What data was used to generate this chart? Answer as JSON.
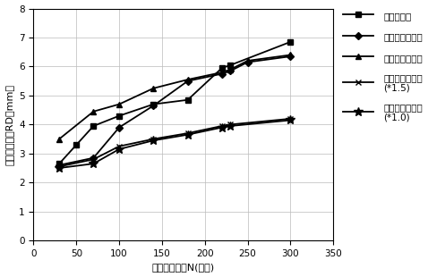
{
  "x": [
    30,
    50,
    70,
    100,
    140,
    180,
    220,
    230,
    250,
    300
  ],
  "series": [
    {
      "label": "车辙实测值",
      "y": [
        2.65,
        3.3,
        3.95,
        4.3,
        4.7,
        4.85,
        5.95,
        6.05,
        null,
        6.85
      ],
      "marker": "s",
      "markersize": 5,
      "color": "#000000",
      "linestyle": "-"
    },
    {
      "label": "推演－典型气温",
      "y": [
        2.6,
        null,
        2.85,
        3.9,
        4.65,
        5.5,
        5.75,
        5.85,
        6.15,
        6.35
      ],
      "marker": "D",
      "markersize": 4,
      "color": "#000000",
      "linestyle": "-"
    },
    {
      "label": "推演－最高气温",
      "y": [
        3.5,
        null,
        4.45,
        4.7,
        5.25,
        5.55,
        5.8,
        5.9,
        6.2,
        6.4
      ],
      "marker": "^",
      "markersize": 5,
      "color": "#000000",
      "linestyle": "-"
    },
    {
      "label": "推演－典型气温\n(*1.5)",
      "y": [
        2.55,
        null,
        2.8,
        3.25,
        3.5,
        3.7,
        3.95,
        4.0,
        null,
        4.2
      ],
      "marker": "x",
      "markersize": 5,
      "color": "#000000",
      "linestyle": "-"
    },
    {
      "label": "推演－最高气温\n(*1.0)",
      "y": [
        2.5,
        null,
        2.65,
        3.15,
        3.45,
        3.65,
        3.9,
        3.95,
        null,
        4.15
      ],
      "marker": "*",
      "markersize": 7,
      "color": "#000000",
      "linestyle": "-"
    }
  ],
  "xlabel": "轴载作用次数N(万次)",
  "ylabel": "沥青路面车辙RD（mm）",
  "xlim": [
    0,
    350
  ],
  "ylim": [
    0,
    8
  ],
  "xticks": [
    0,
    50,
    100,
    150,
    200,
    250,
    300,
    350
  ],
  "yticks": [
    0,
    1,
    2,
    3,
    4,
    5,
    6,
    7,
    8
  ],
  "grid": true,
  "background_color": "#ffffff",
  "legend_labels": [
    "车辙实测值",
    "推演－典型气温",
    "推演－最高气温",
    "推演－典型气温\n(*1.5)",
    "推演－最高气温\n(*1.0)"
  ]
}
